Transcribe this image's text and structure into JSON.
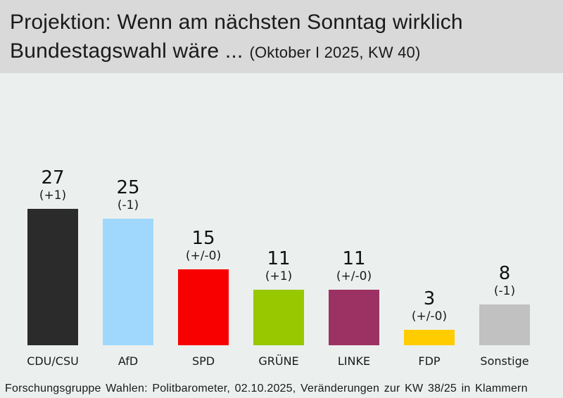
{
  "header": {
    "title_line1": "Projektion: Wenn am nächsten Sonntag wirklich",
    "title_line2_main": "Bundestagswahl wäre ...",
    "title_line2_sub": "(Oktober I 2025, KW 40)"
  },
  "footer": {
    "source": "Forschungsgruppe Wahlen: Politbarometer, 02.10.2025, Veränderungen zur KW 38/25 in Klammern"
  },
  "chart_data": {
    "type": "bar",
    "title": "Projektion: Wenn am nächsten Sonntag wirklich Bundestagswahl wäre ... (Oktober I 2025, KW 40)",
    "categories": [
      "CDU/CSU",
      "AfD",
      "SPD",
      "GRÜNE",
      "LINKE",
      "FDP",
      "Sonstige"
    ],
    "values": [
      27,
      25,
      15,
      11,
      11,
      3,
      8
    ],
    "changes": [
      "(+1)",
      "(-1)",
      "(+/-0)",
      "(+1)",
      "(+/-0)",
      "(+/-0)",
      "(-1)"
    ],
    "bar_colors": [
      "#2b2b2b",
      "#9fd8fc",
      "#f90000",
      "#97c800",
      "#9c3263",
      "#ffcc00",
      "#c1c1c1"
    ],
    "ylim": [
      0,
      30
    ],
    "grid": false,
    "legend": "none",
    "value_labels": "above bars with change vs previous week in parentheses"
  },
  "colors": {
    "title_background": "#d9d9d9",
    "chart_background": "#ebf0ee",
    "text": "#1a1a1a"
  }
}
